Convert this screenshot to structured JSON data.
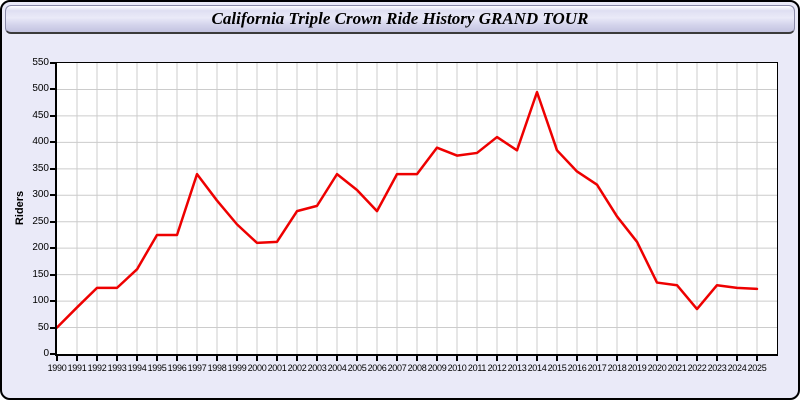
{
  "header": {
    "title": "California Triple Crown Ride History GRAND TOUR"
  },
  "chart_data": {
    "type": "line",
    "title": "California Triple Crown Ride History GRAND TOUR",
    "xlabel": "",
    "ylabel": "Riders",
    "x": [
      1990,
      1991,
      1992,
      1993,
      1994,
      1995,
      1996,
      1997,
      1998,
      1999,
      2000,
      2001,
      2002,
      2003,
      2004,
      2005,
      2006,
      2007,
      2008,
      2009,
      2010,
      2011,
      2012,
      2013,
      2014,
      2015,
      2016,
      2017,
      2018,
      2019,
      2020,
      2021,
      2022,
      2023,
      2024,
      2025
    ],
    "series": [
      {
        "name": "Riders",
        "values": [
          50,
          88,
          125,
          125,
          160,
          225,
          225,
          340,
          290,
          245,
          210,
          212,
          270,
          280,
          340,
          310,
          270,
          340,
          340,
          390,
          375,
          380,
          410,
          385,
          495,
          385,
          345,
          320,
          260,
          212,
          135,
          130,
          85,
          130,
          125,
          123
        ]
      }
    ],
    "ylim": [
      0,
      550
    ],
    "y_tick_step": 50,
    "x_tick_step": 1,
    "grid": true,
    "legend": false,
    "line_color": "#ee0000",
    "grid_color": "#cccccc",
    "plot_bg": "#ffffff",
    "panel_bg": "#eaeaf8"
  }
}
